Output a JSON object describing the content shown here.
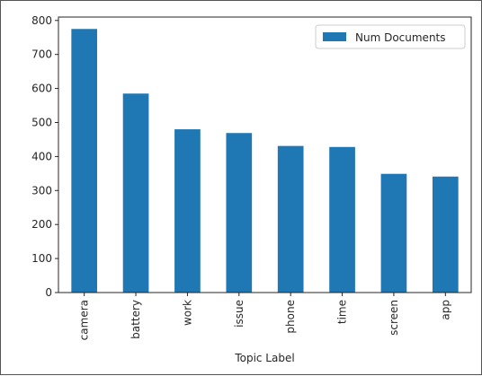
{
  "colors": {
    "bar": "#1f77b4",
    "axis": "#262626",
    "legend_border": "#cccccc"
  },
  "chart_data": {
    "type": "bar",
    "categories": [
      "camera",
      "battery",
      "work",
      "issue",
      "phone",
      "time",
      "screen",
      "app"
    ],
    "series": [
      {
        "name": "Num Documents",
        "values": [
          775,
          585,
          480,
          469,
          431,
          428,
          349,
          341
        ]
      }
    ],
    "xlabel": "Topic Label",
    "ylabel": "",
    "ylim": [
      0,
      810
    ],
    "yticks": [
      0,
      100,
      200,
      300,
      400,
      500,
      600,
      700,
      800
    ],
    "legend_position": "top-right",
    "grid": false
  }
}
